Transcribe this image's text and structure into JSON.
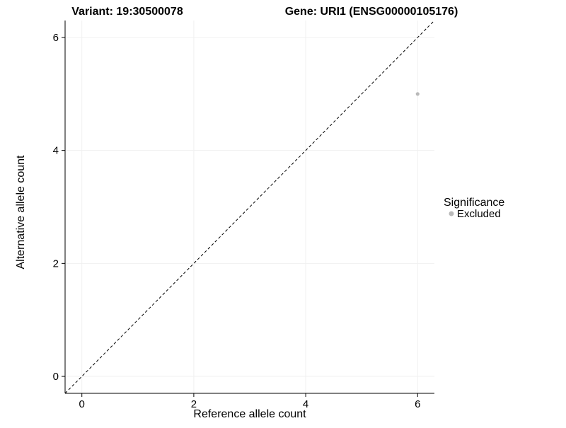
{
  "chart_data": {
    "type": "scatter",
    "title_left": "Variant: 19:30500078",
    "title_right": "Gene: URI1 (ENSG00000105176)",
    "xlabel": "Reference allele count",
    "ylabel": "Alternative allele count",
    "xlim": [
      -0.3,
      6.3
    ],
    "ylim": [
      -0.3,
      6.3
    ],
    "xticks": [
      0,
      2,
      4,
      6
    ],
    "yticks": [
      0,
      2,
      4,
      6
    ],
    "grid": "major-light",
    "identity_line": {
      "style": "dashed",
      "slope": 1,
      "intercept": 0,
      "color": "#000000"
    },
    "series": [
      {
        "name": "Excluded",
        "color": "#b9b9b9",
        "points": [
          {
            "x": 6,
            "y": 5
          }
        ]
      }
    ],
    "legend": {
      "title": "Significance",
      "position": "right",
      "entries": [
        {
          "label": "Excluded",
          "color": "#b9b9b9"
        }
      ]
    }
  },
  "colors": {
    "background": "#ffffff",
    "text": "#000000",
    "axis": "#000000",
    "grid": "#f0f0f0",
    "identity_line": "#000000",
    "point": "#b9b9b9"
  }
}
